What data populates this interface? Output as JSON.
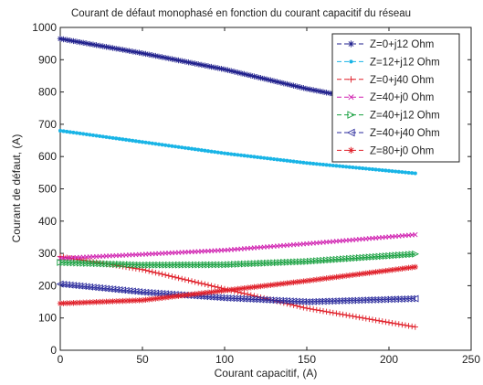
{
  "chart_data": {
    "type": "line",
    "title": "Courant de défaut monophasé en fonction du courant capacitif du réseau",
    "xlabel": "Courant capacitif, (A)",
    "ylabel": "Courant de défaut, (A)",
    "xlim": [
      0,
      250
    ],
    "ylim": [
      0,
      1000
    ],
    "xticks": [
      0,
      50,
      100,
      150,
      200,
      250
    ],
    "yticks": [
      0,
      100,
      200,
      300,
      400,
      500,
      600,
      700,
      800,
      900,
      1000
    ],
    "grid": false,
    "legend_position": "top-right",
    "x_range_of_series": [
      0,
      216
    ],
    "series": [
      {
        "name": "Z=0+j12 Ohm",
        "color": "#1f1f8c",
        "marker": "asterisk",
        "x": [
          0,
          50,
          100,
          150,
          216
        ],
        "values": [
          965,
          920,
          870,
          810,
          745
        ]
      },
      {
        "name": "Z=12+j12 Ohm",
        "color": "#19b4e6",
        "marker": "dot",
        "x": [
          0,
          50,
          100,
          150,
          216
        ],
        "values": [
          680,
          645,
          610,
          580,
          548
        ]
      },
      {
        "name": "Z=0+j40 Ohm",
        "color": "#e0202a",
        "marker": "plus",
        "x": [
          0,
          50,
          100,
          150,
          216
        ],
        "values": [
          290,
          250,
          190,
          130,
          72
        ]
      },
      {
        "name": "Z=40+j0 Ohm",
        "color": "#d020b0",
        "marker": "x",
        "x": [
          0,
          50,
          100,
          150,
          216
        ],
        "values": [
          285,
          297,
          310,
          330,
          358
        ]
      },
      {
        "name": "Z=40+j12 Ohm",
        "color": "#18a040",
        "marker": "triangle-right",
        "x": [
          0,
          50,
          100,
          150,
          216
        ],
        "values": [
          272,
          264,
          265,
          275,
          298
        ]
      },
      {
        "name": "Z=40+j40 Ohm",
        "color": "#2a2a9c",
        "marker": "triangle-left",
        "x": [
          0,
          50,
          100,
          150,
          216
        ],
        "values": [
          205,
          180,
          162,
          150,
          160
        ]
      },
      {
        "name": "Z=80+j0 Ohm",
        "color": "#e0202a",
        "marker": "star",
        "x": [
          0,
          50,
          100,
          150,
          216
        ],
        "values": [
          145,
          155,
          185,
          215,
          258
        ]
      }
    ]
  }
}
